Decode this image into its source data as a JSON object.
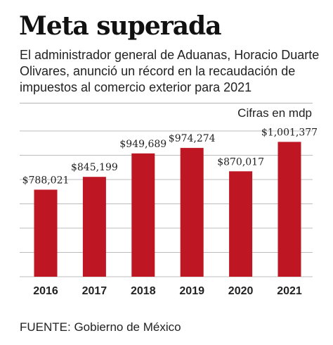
{
  "title": "Meta superada",
  "subtitle": "El administrador general de Aduanas, Horacio Duarte Olivares, anunció un récord en la recaudación de impuestos al comercio exterior para 2021",
  "unit_label": "Cifras en mdp",
  "source": "FUENTE: Gobierno de México",
  "colors": {
    "bar": "#be1622",
    "grid": "#bcbcbc",
    "text": "#222222"
  },
  "chart_data": {
    "type": "bar",
    "title": "Meta superada",
    "xlabel": "",
    "ylabel": "",
    "categories": [
      "2016",
      "2017",
      "2018",
      "2019",
      "2020",
      "2021"
    ],
    "values": [
      788021,
      845199,
      949689,
      974274,
      870017,
      1001377
    ],
    "data_labels": [
      "$788,021",
      "$845,199",
      "$949,689",
      "$974,274",
      "$870,017",
      "$1,001,377"
    ],
    "ylim": [
      400000,
      1050000
    ],
    "grid": true,
    "legend": "none"
  }
}
